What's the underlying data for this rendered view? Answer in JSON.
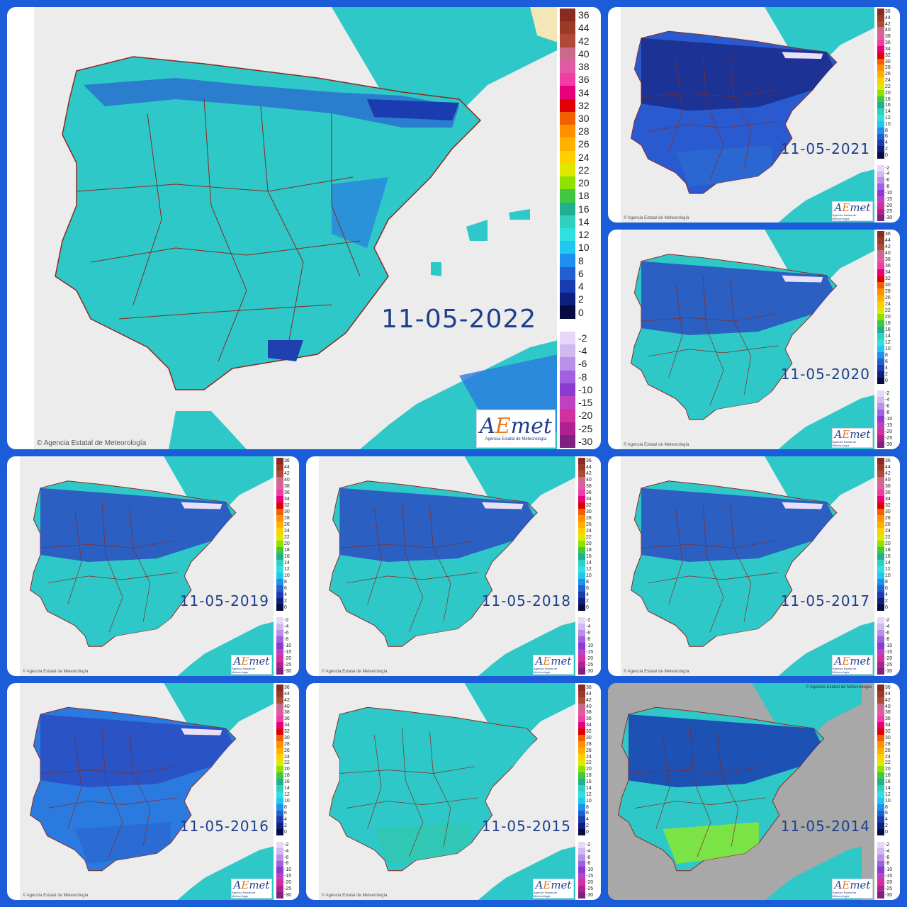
{
  "copyright": "© Agencia Estatal de Meteorología",
  "logo": {
    "brand_a": "A",
    "brand_e": "E",
    "brand_rest": "met",
    "sub": "Agencia Estatal de Meteorología"
  },
  "legend": {
    "ticks": [
      "36",
      "44",
      "42",
      "40",
      "38",
      "36",
      "34",
      "32",
      "30",
      "28",
      "26",
      "24",
      "22",
      "20",
      "18",
      "16",
      "14",
      "12",
      "10",
      "8",
      "6",
      "4",
      "2",
      "0",
      "",
      "-2",
      "-4",
      "-6",
      "-8",
      "-10",
      "-15",
      "-20",
      "-25",
      "-30"
    ],
    "colors": [
      "#8b2a20",
      "#9c3a2a",
      "#b04a36",
      "#c96a8a",
      "#e05aa6",
      "#f03ca4",
      "#e8007a",
      "#e00000",
      "#f06000",
      "#ff9000",
      "#ffb000",
      "#ffd000",
      "#e0e800",
      "#90e000",
      "#40c840",
      "#20b090",
      "#30d0c0",
      "#30e0e0",
      "#20c8f0",
      "#2090f0",
      "#2060d0",
      "#1a3cb0",
      "#0d2080",
      "#060c40",
      "#ffffff",
      "#e8d8f8",
      "#d0b8f0",
      "#b890e8",
      "#a060e0",
      "#8a3cd0",
      "#c040c0",
      "#d030a0",
      "#b02090",
      "#802080"
    ]
  },
  "panels": [
    {
      "id": "2022",
      "date": "11-05-2022",
      "palette": "c2022"
    },
    {
      "id": "2021",
      "date": "11-05-2021",
      "palette": "c2021"
    },
    {
      "id": "2020",
      "date": "11-05-2020",
      "palette": "c2020"
    },
    {
      "id": "2019",
      "date": "11-05-2019",
      "palette": "c2019"
    },
    {
      "id": "2018",
      "date": "11-05-2018",
      "palette": "c2018"
    },
    {
      "id": "2017",
      "date": "11-05-2017",
      "palette": "c2017"
    },
    {
      "id": "2016",
      "date": "11-05-2016",
      "palette": "c2016"
    },
    {
      "id": "2015",
      "date": "11-05-2015",
      "palette": "c2015"
    },
    {
      "id": "2014",
      "date": "11-05-2014",
      "palette": "c2014"
    }
  ],
  "colors": {
    "background": "#1b5cd9",
    "sea": "#ececec",
    "land_base": "#2ec8c8",
    "cold": "#2a4cc0",
    "very_cold": "#1a2c8a",
    "warm": "#8ae830",
    "border": "#8a2a20",
    "date_text": "#1e3f8c"
  }
}
